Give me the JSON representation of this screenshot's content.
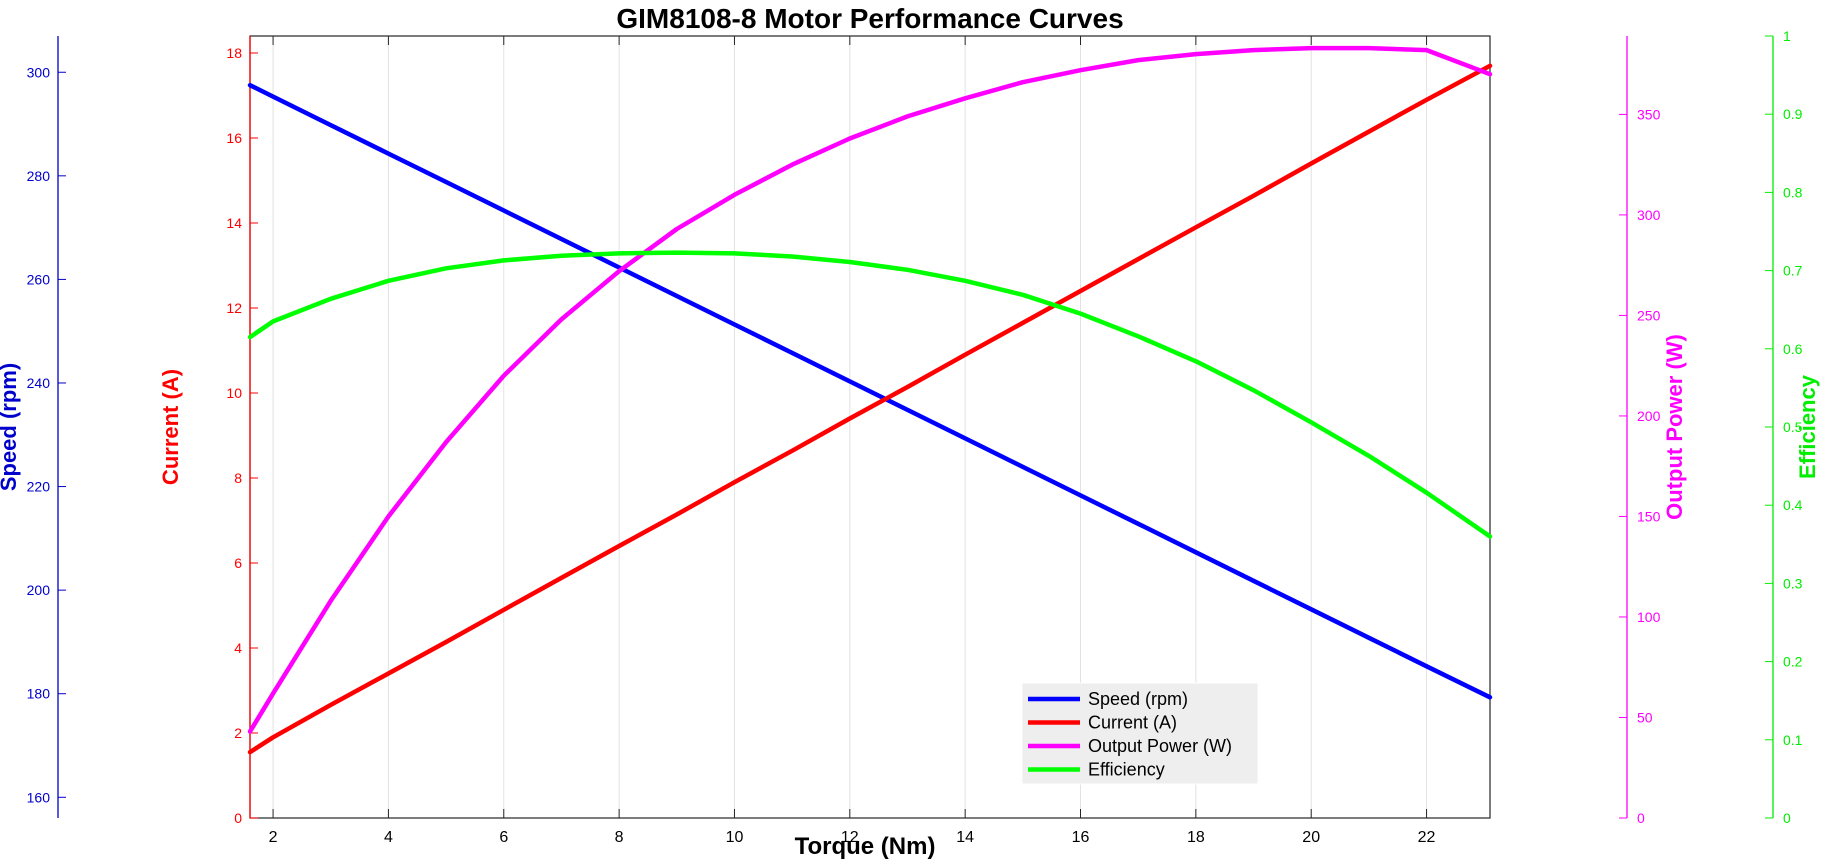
{
  "chart_data": {
    "type": "line",
    "title": "GIM8108-8 Motor Performance Curves",
    "xlabel": "Torque (Nm)",
    "xlim": [
      1.6,
      23.1
    ],
    "xticks": [
      2,
      4,
      6,
      8,
      10,
      12,
      14,
      16,
      18,
      20,
      22
    ],
    "grid": "vertical",
    "legend_position": "bottom-center",
    "axes": [
      {
        "id": "speed",
        "label": "Speed (rpm)",
        "color": "#0000cc",
        "lim": [
          156,
          307
        ],
        "ticks": [
          160,
          180,
          200,
          220,
          240,
          260,
          280,
          300
        ],
        "side": "left-outer"
      },
      {
        "id": "current",
        "label": "Current (A)",
        "color": "#ff0000",
        "lim": [
          0,
          18.4
        ],
        "ticks": [
          0,
          2,
          4,
          6,
          8,
          10,
          12,
          14,
          16,
          18
        ],
        "side": "left-inner"
      },
      {
        "id": "power",
        "label": "Output Power (W)",
        "color": "#ff00ff",
        "lim": [
          0,
          389
        ],
        "ticks": [
          0,
          50,
          100,
          150,
          200,
          250,
          300,
          350
        ],
        "side": "right-inner"
      },
      {
        "id": "efficiency",
        "label": "Efficiency",
        "color": "#00ee00",
        "lim": [
          0,
          1
        ],
        "ticks": [
          0,
          0.1,
          0.2,
          0.3,
          0.4,
          0.5,
          0.6,
          0.7,
          0.8,
          0.9,
          1
        ],
        "side": "right-outer"
      }
    ],
    "x": [
      1.6,
      2,
      3,
      4,
      5,
      6,
      7,
      8,
      9,
      10,
      11,
      12,
      13,
      14,
      15,
      16,
      17,
      18,
      19,
      20,
      21,
      22,
      23.1
    ],
    "series": [
      {
        "name": "Speed (rpm)",
        "axis": "speed",
        "color": "#0000ff",
        "values": [
          297.5,
          295.3,
          289.8,
          284.3,
          278.8,
          273.3,
          267.8,
          262.3,
          256.8,
          251.3,
          245.8,
          240.3,
          234.8,
          229.3,
          223.8,
          218.3,
          212.8,
          207.3,
          201.8,
          196.3,
          190.8,
          185.3,
          179.3
        ]
      },
      {
        "name": "Current (A)",
        "axis": "current",
        "color": "#ff0000",
        "values": [
          1.55,
          1.9,
          2.66,
          3.4,
          4.14,
          4.9,
          5.65,
          6.4,
          7.14,
          7.9,
          8.64,
          9.4,
          10.14,
          10.9,
          11.65,
          12.4,
          13.15,
          13.9,
          14.64,
          15.4,
          16.15,
          16.9,
          17.7
        ]
      },
      {
        "name": "Output Power (W)",
        "axis": "power",
        "color": "#ff00ff",
        "values": [
          43,
          62,
          108,
          150,
          187,
          220,
          248,
          272,
          293,
          310,
          325,
          338,
          349,
          358,
          366,
          372,
          377,
          380,
          382,
          383,
          383,
          382,
          370
        ]
      },
      {
        "name": "Efficiency",
        "axis": "efficiency",
        "color": "#00ff00",
        "values": [
          0.615,
          0.635,
          0.664,
          0.687,
          0.703,
          0.713,
          0.719,
          0.722,
          0.723,
          0.722,
          0.718,
          0.711,
          0.701,
          0.687,
          0.669,
          0.645,
          0.616,
          0.584,
          0.547,
          0.506,
          0.463,
          0.416,
          0.36
        ]
      }
    ]
  }
}
